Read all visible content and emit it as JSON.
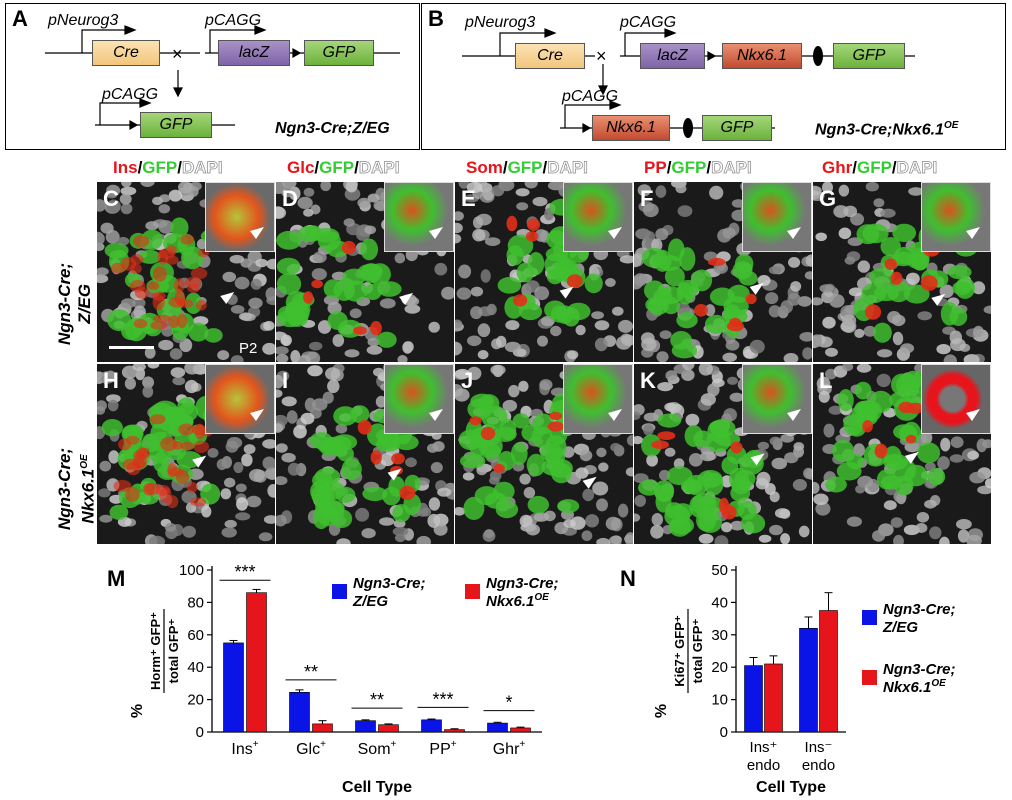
{
  "panels": {
    "A": "A",
    "B": "B",
    "C": "C",
    "D": "D",
    "E": "E",
    "F": "F",
    "G": "G",
    "H": "H",
    "I": "I",
    "J": "J",
    "K": "K",
    "L": "L",
    "M": "M",
    "N": "N"
  },
  "diagramA": {
    "promoter1": "pNeurog3",
    "gene1": "Cre",
    "cross": "×",
    "promoter2": "pCAGG",
    "gene2a": "lacZ",
    "gene2b": "GFP",
    "promoter3": "pCAGG",
    "gene3": "GFP",
    "genotype": "Ngn3-Cre;Z/EG"
  },
  "diagramB": {
    "promoter1": "pNeurog3",
    "gene1": "Cre",
    "cross": "×",
    "promoter2": "pCAGG",
    "gene2a": "lacZ",
    "gene2b": "Nkx6.1",
    "gene2c": "GFP",
    "promoter3": "pCAGG",
    "gene3a": "Nkx6.1",
    "gene3b": "GFP",
    "genotype": "Ngn3-Cre;Nkx6.1",
    "genotype_sup": "OE"
  },
  "stains": [
    {
      "hormone": "Ins",
      "sep1": "/",
      "gfp": "GFP",
      "sep2": "/",
      "dapi": "DAPI"
    },
    {
      "hormone": "Glc",
      "sep1": "/",
      "gfp": "GFP",
      "sep2": "/",
      "dapi": "DAPI"
    },
    {
      "hormone": "Som",
      "sep1": "/",
      "gfp": "GFP",
      "sep2": "/",
      "dapi": "DAPI"
    },
    {
      "hormone": "PP",
      "sep1": "/",
      "gfp": "GFP",
      "sep2": "/",
      "dapi": "DAPI"
    },
    {
      "hormone": "Ghr",
      "sep1": "/",
      "gfp": "GFP",
      "sep2": "/",
      "dapi": "DAPI"
    }
  ],
  "rows": {
    "row1_line1": "Ngn3-Cre;",
    "row1_line2": "Z/EG",
    "row2_line1": "Ngn3-Cre;",
    "row2_line2": "Nkx6.1",
    "row2_sup": "OE"
  },
  "age_label": "P2",
  "colors": {
    "ins": "#e8141b",
    "gfp": "#33cc33",
    "dapi": "#ffffff",
    "blue": "#0a14e6",
    "red": "#e6141b"
  },
  "chart_data": [
    {
      "type": "bar",
      "panel": "M",
      "categories": [
        "Ins",
        "Glc",
        "Som",
        "PP",
        "Ghr"
      ],
      "category_sup": "+",
      "series": [
        {
          "name": "Ngn3-Cre; Z/EG",
          "values": [
            55,
            24.5,
            7,
            7.5,
            5.5
          ],
          "errors": [
            1.5,
            1.5,
            0.5,
            0.5,
            0.5
          ],
          "color": "#0a14e6"
        },
        {
          "name": "Ngn3-Cre; Nkx6.1^OE",
          "values": [
            86,
            5,
            4.5,
            1.5,
            2.5
          ],
          "errors": [
            2,
            2,
            0.5,
            0.5,
            0.5
          ],
          "color": "#e6141b"
        }
      ],
      "significance": [
        "***",
        "**",
        "**",
        "***",
        "*"
      ],
      "ylim": [
        0,
        100
      ],
      "yticks": [
        0,
        20,
        40,
        60,
        80,
        100
      ],
      "ylabel_prefix": "%",
      "ylabel_num": "Horm⁺ GFP⁺",
      "ylabel_den": "total GFP⁺",
      "xlabel": "Cell Type",
      "legend": [
        {
          "line1": "Ngn3-Cre;",
          "line2": "Z/EG",
          "sup": ""
        },
        {
          "line1": "Ngn3-Cre;",
          "line2": "Nkx6.1",
          "sup": "OE"
        }
      ]
    },
    {
      "type": "bar",
      "panel": "N",
      "categories": [
        "Ins⁺ endo",
        "Ins⁻ endo"
      ],
      "category_lines": [
        [
          "Ins⁺",
          "endo"
        ],
        [
          "Ins⁻",
          "endo"
        ]
      ],
      "series": [
        {
          "name": "Ngn3-Cre; Z/EG",
          "values": [
            20.5,
            32
          ],
          "errors": [
            2.5,
            3.5
          ],
          "color": "#0a14e6"
        },
        {
          "name": "Ngn3-Cre; Nkx6.1^OE",
          "values": [
            21,
            37.5
          ],
          "errors": [
            2.5,
            5.5
          ],
          "color": "#e6141b"
        }
      ],
      "ylim": [
        0,
        50
      ],
      "yticks": [
        0,
        10,
        20,
        30,
        40,
        50
      ],
      "ylabel_prefix": "%",
      "ylabel_num": "Ki67⁺ GFP⁺",
      "ylabel_den": "total GFP⁺",
      "xlabel": "Cell Type",
      "legend": [
        {
          "line1": "Ngn3-Cre;",
          "line2": "Z/EG",
          "sup": ""
        },
        {
          "line1": "Ngn3-Cre;",
          "line2": "Nkx6.1",
          "sup": "OE"
        }
      ]
    }
  ]
}
